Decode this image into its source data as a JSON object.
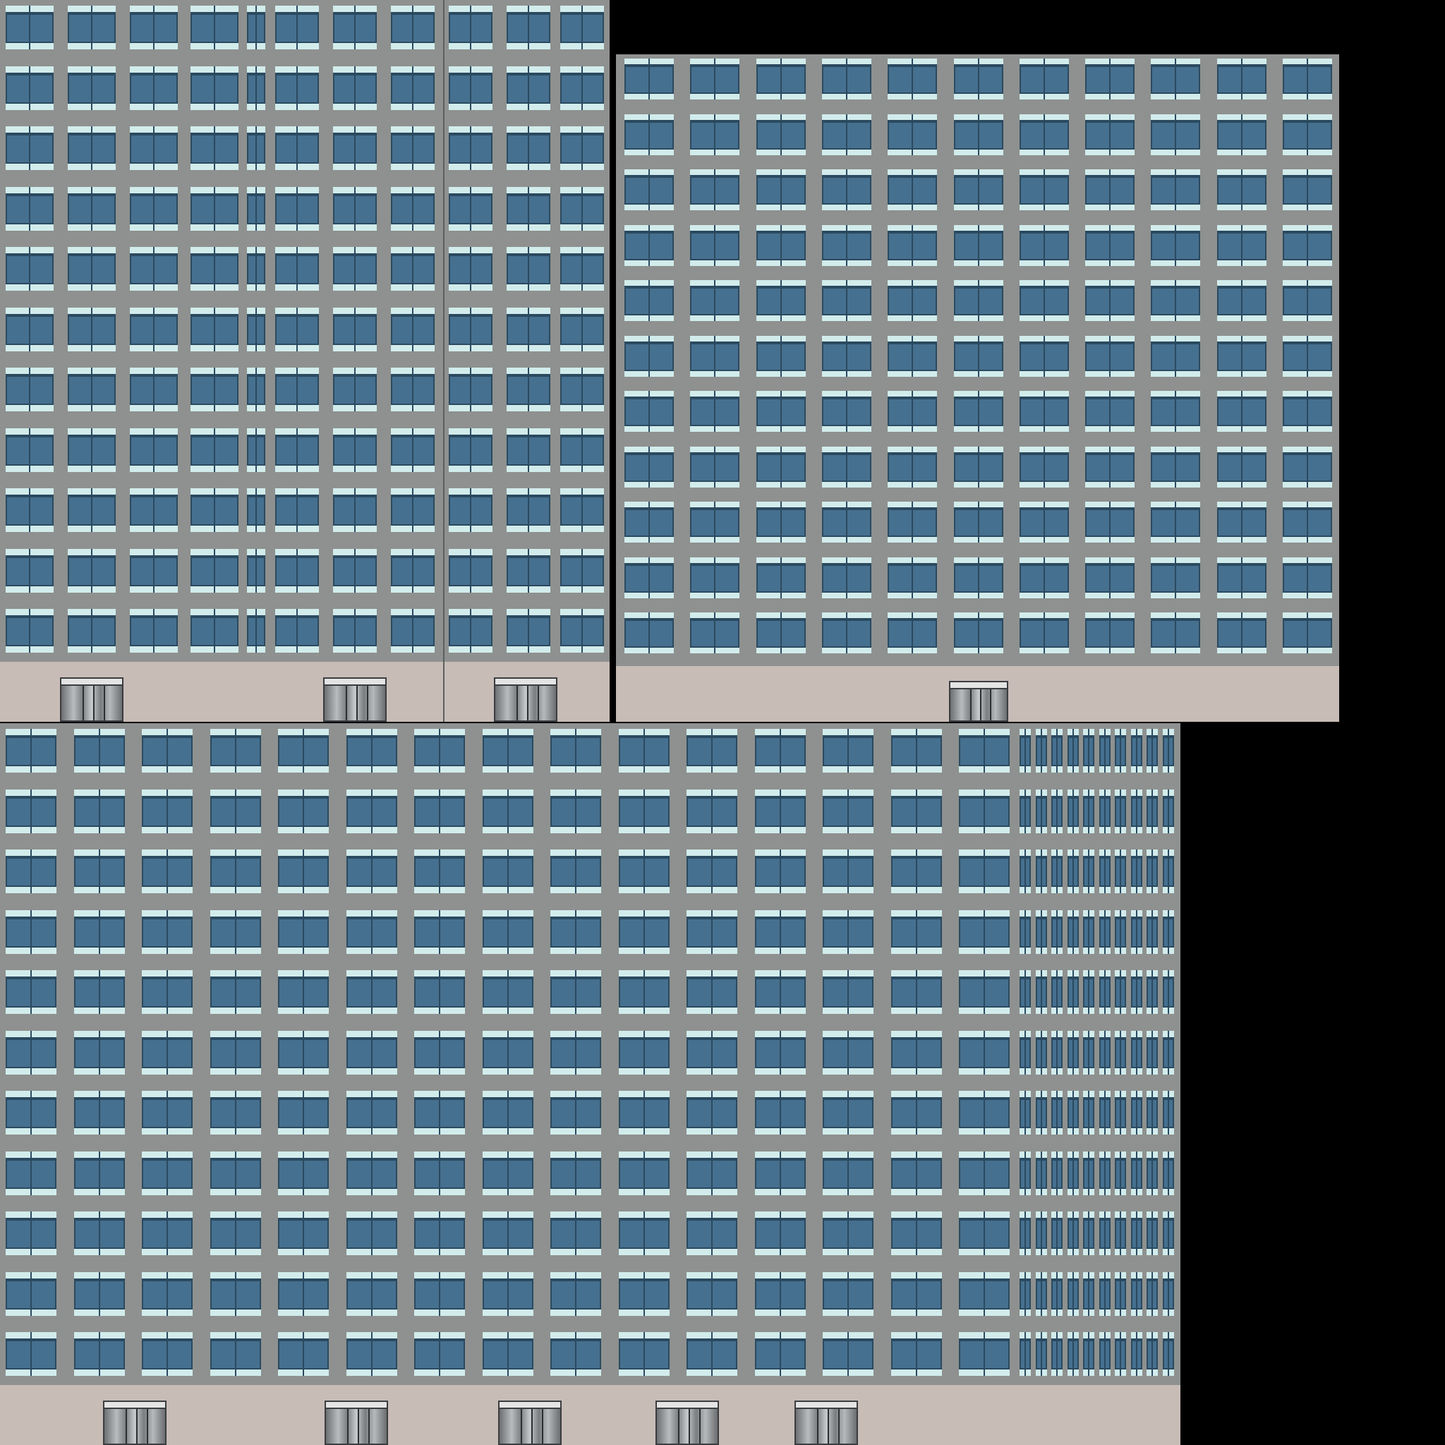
{
  "image": {
    "background_color": "#000000"
  },
  "colors": {
    "wall": "#8e918f",
    "ground_floor": "#c8bcb7",
    "window_frame_light": "#d2ecec",
    "window_glass": "#46708f",
    "window_mullion": "#2b4a60",
    "door_frame": "#3a3d40"
  },
  "facades": [
    {
      "name": "facade-top-left",
      "window_rows": 11,
      "window_columns": 10,
      "entrance_doors": 3
    },
    {
      "name": "facade-top-right",
      "window_rows": 11,
      "window_columns": 11,
      "entrance_doors": 1
    },
    {
      "name": "facade-bottom",
      "window_rows": 11,
      "window_columns": 25,
      "entrance_doors": 5
    }
  ]
}
